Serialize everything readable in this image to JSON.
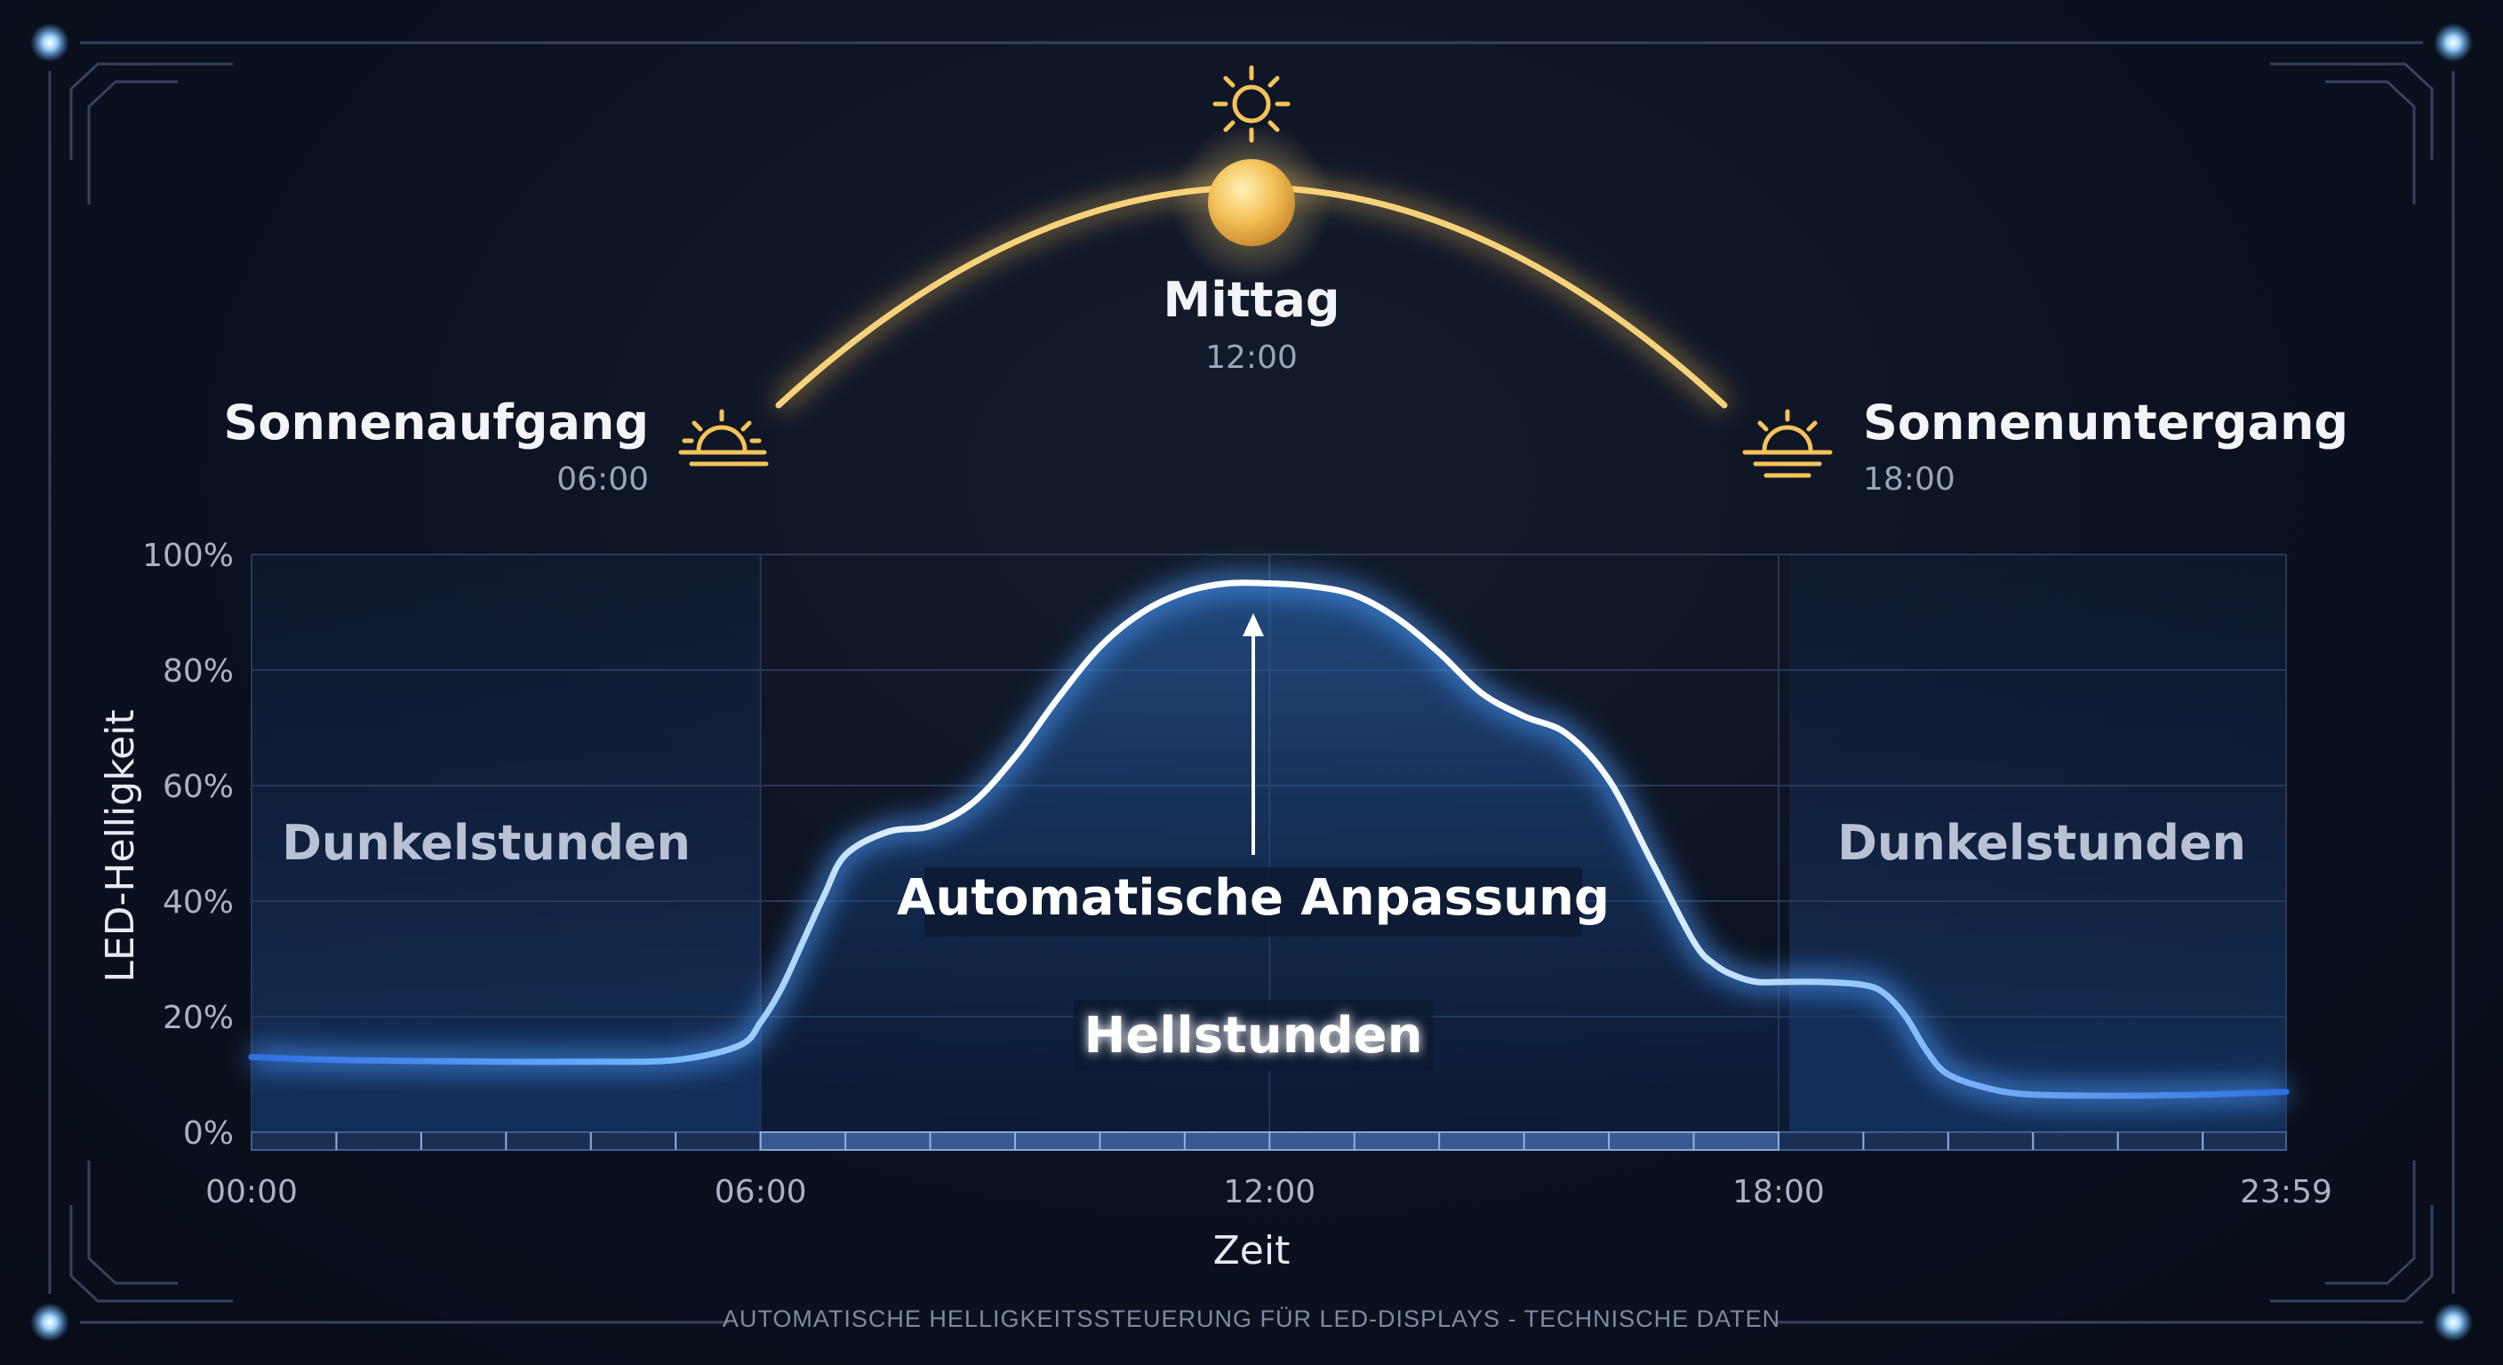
{
  "chart_data": {
    "type": "area",
    "ylabel": "LED-Helligkeit",
    "xlabel": "Zeit",
    "ylim": [
      0,
      100
    ],
    "yticks": [
      0,
      20,
      40,
      60,
      80,
      100
    ],
    "ytick_labels": [
      "0%",
      "20%",
      "40%",
      "60%",
      "80%",
      "100%"
    ],
    "xlim": [
      "00:00",
      "23:59"
    ],
    "xticks": [
      "00:00",
      "06:00",
      "12:00",
      "18:00",
      "23:59"
    ],
    "grid": true,
    "series": [
      {
        "x": [
          "00:00",
          "01:00",
          "02:00",
          "03:00",
          "04:00",
          "05:00",
          "05:45",
          "06:00",
          "06:15",
          "06:30",
          "06:45",
          "07:00",
          "07:30",
          "08:00",
          "08:30",
          "09:00",
          "09:30",
          "10:00",
          "10:30",
          "11:00",
          "11:30",
          "12:00",
          "12:30",
          "13:00",
          "13:30",
          "14:00",
          "14:30",
          "15:00",
          "15:30",
          "16:00",
          "16:30",
          "17:00",
          "17:15",
          "17:30",
          "17:45",
          "18:00",
          "18:30",
          "19:00",
          "19:15",
          "19:30",
          "19:45",
          "20:00",
          "20:30",
          "21:00",
          "22:00",
          "23:00",
          "23:59"
        ],
        "values": [
          13,
          12.5,
          12.3,
          12.2,
          12.2,
          12.5,
          15,
          19,
          25,
          33,
          41,
          48,
          52,
          53,
          57,
          65,
          75,
          84,
          90,
          93.5,
          95,
          95,
          94.5,
          93,
          89,
          83,
          76,
          72,
          69,
          61,
          47,
          33,
          29,
          27,
          26,
          26,
          26,
          25.5,
          24,
          20,
          14,
          10,
          7.5,
          6.5,
          6.3,
          6.5,
          7
        ]
      }
    ],
    "annotations": {
      "top_label": "Mittag",
      "top_time": "12:00",
      "left_label": "Sonnenaufgang",
      "left_time": "06:00",
      "right_label": "Sonnenuntergang",
      "right_time": "18:00",
      "arrow_label": "Automatische Anpassung",
      "center_region": "Hellstunden",
      "left_region": "Dunkelstunden",
      "right_region": "Dunkelstunden"
    }
  },
  "footer": "AUTOMATISCHE HELLIGKEITSSTEUERUNG FÜR LED-DISPLAYS - TECHNISCHE DATEN",
  "colors": {
    "sun": "#f6c55e",
    "curve": "#ffffff",
    "curve_glow": "#5aa9ff",
    "fill": "#1a5aa8",
    "grid": "#2a3854",
    "frame": "#3a4a66"
  }
}
